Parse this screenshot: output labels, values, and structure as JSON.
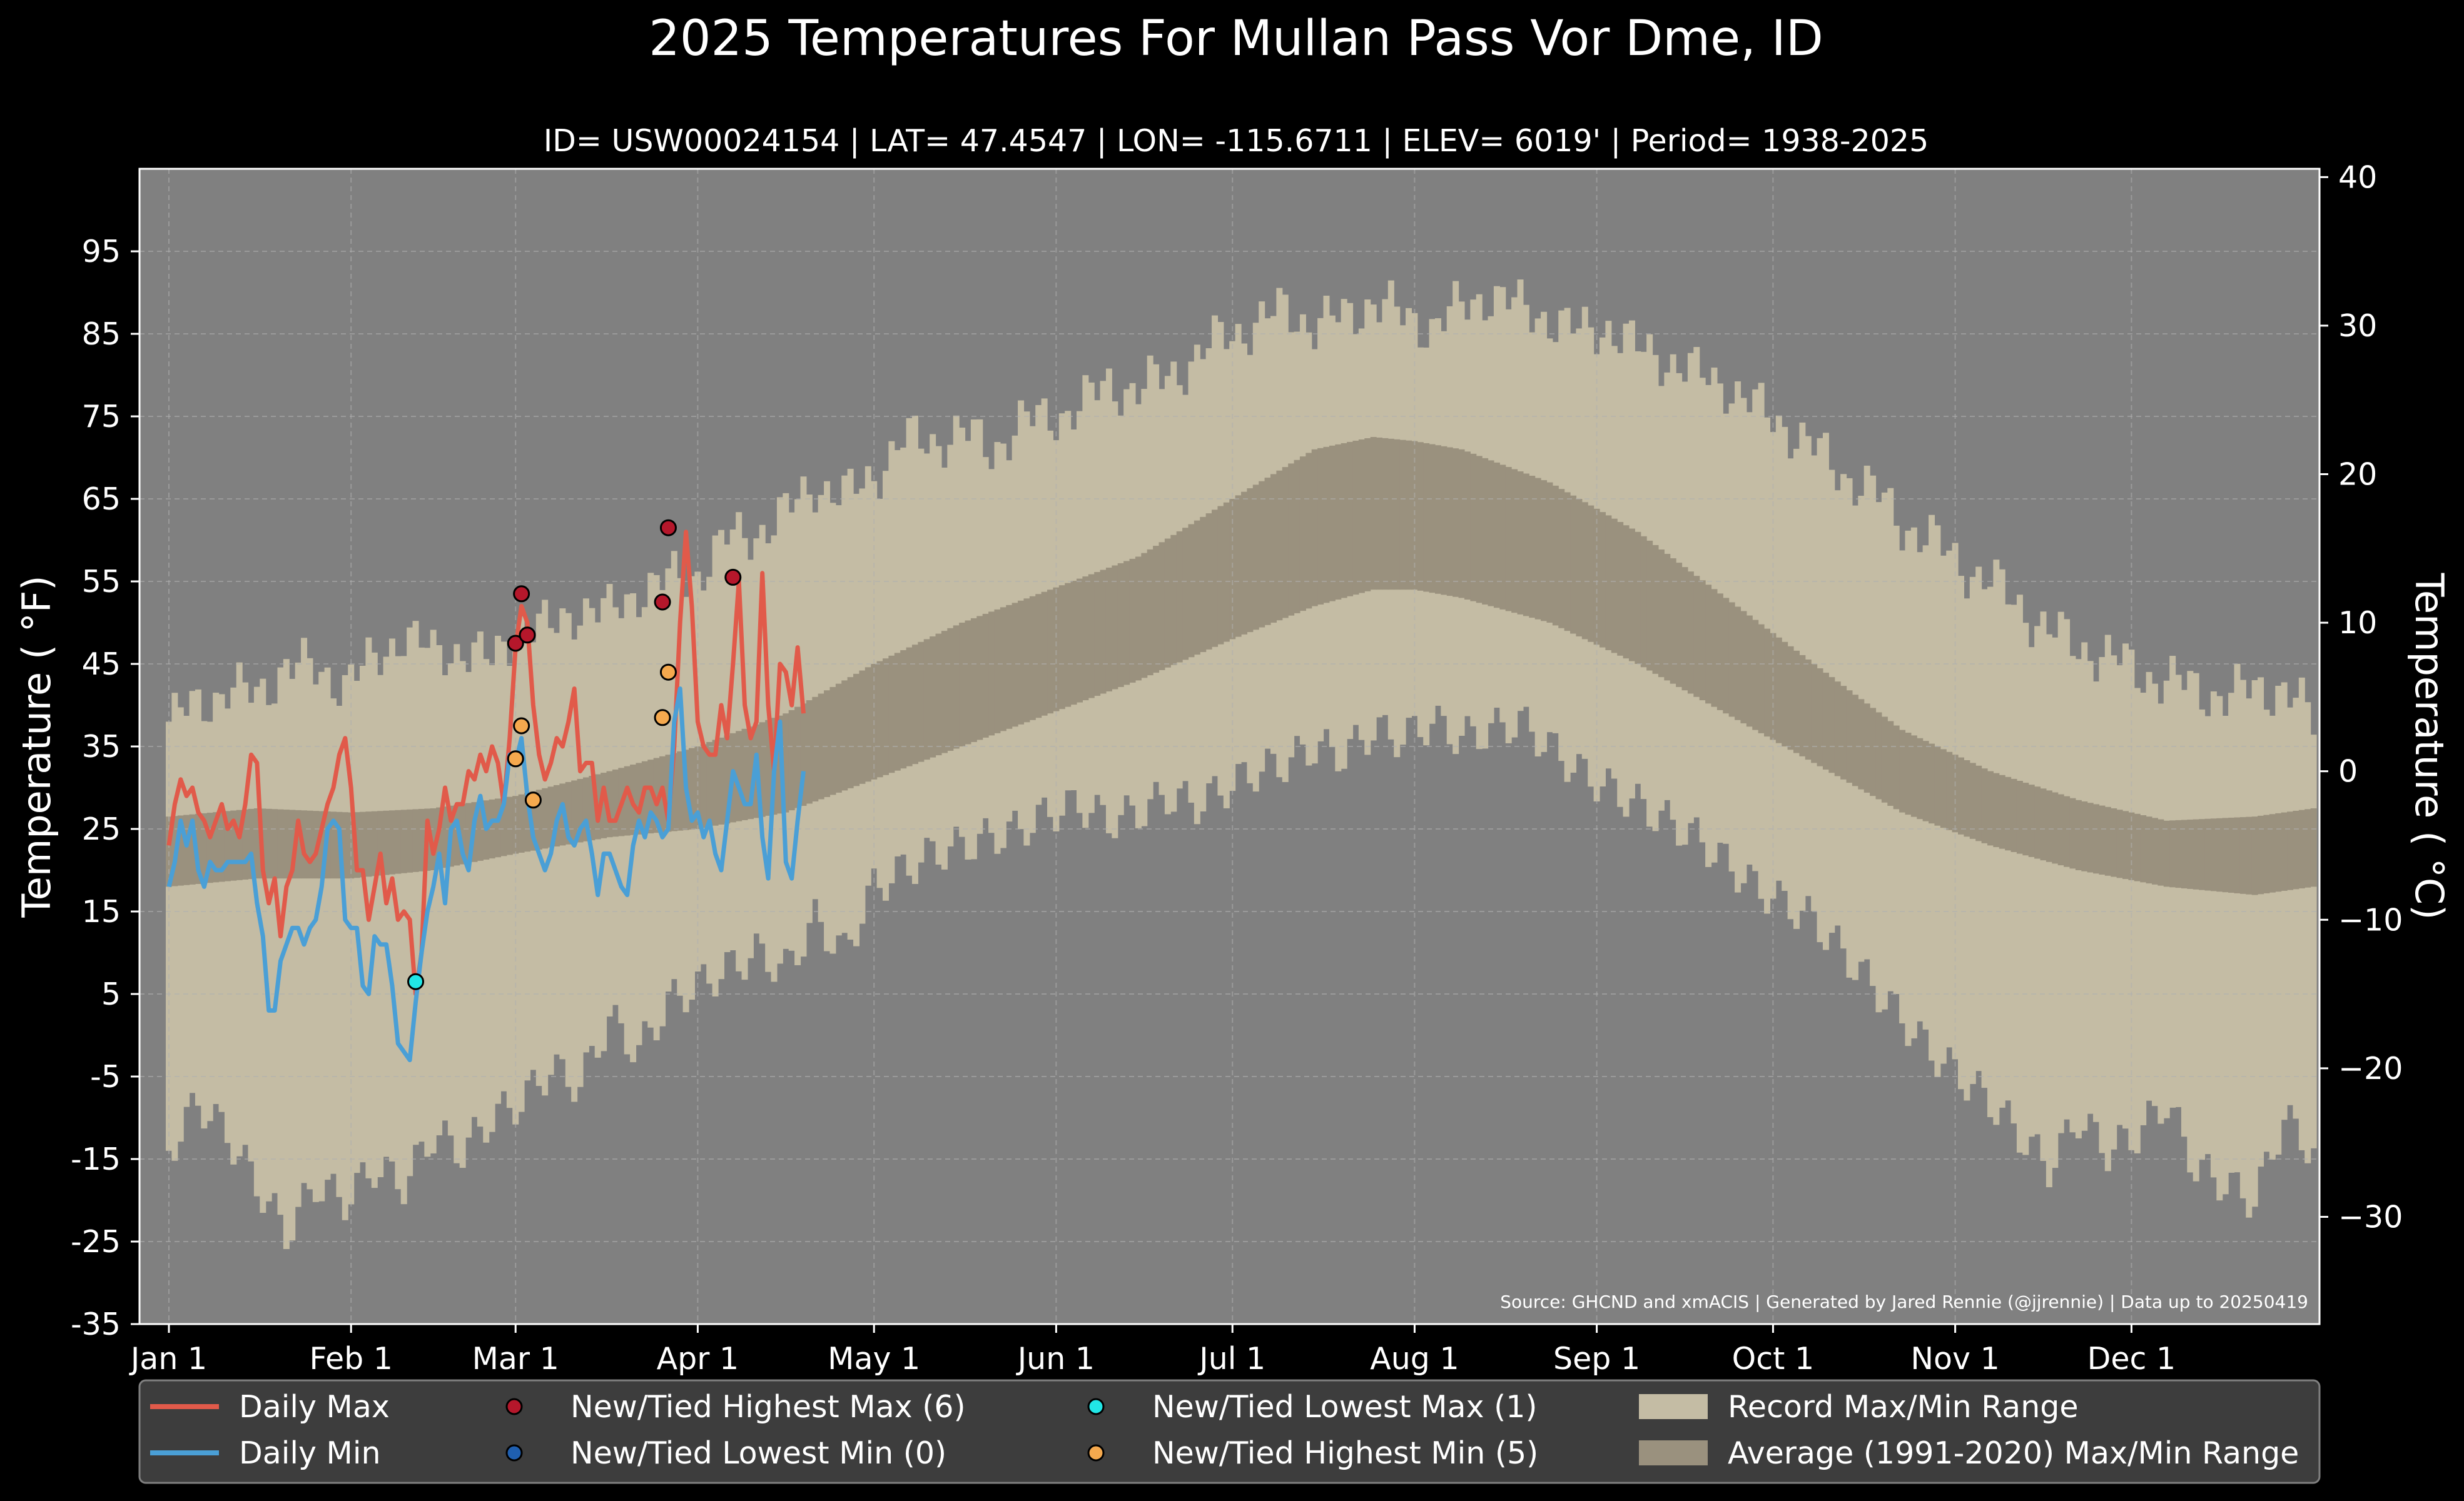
{
  "chart_data": {
    "type": "line",
    "title": "2025 Temperatures For Mullan Pass Vor Dme, ID",
    "subtitle": "ID= USW00024154 | LAT= 47.4547 | LON= -115.6711 | ELEV= 6019' | Period= 1938-2025",
    "ylabel": "Temperature ( $^\\circ$F)",
    "ylabel_display": "Temperature ( °F)",
    "y2label_display": "Temperature ( °C)",
    "ylim": [
      -35,
      105
    ],
    "y2lim": [
      -37.22,
      40.56
    ],
    "xlim": [
      0,
      366
    ],
    "grid": true,
    "legend_placement": "bottom",
    "source": "Source: GHCND and xmACIS | Generated by Jared Rennie (@jjrennie) | Data up to 20250419",
    "y_ticks": [
      "95",
      "85",
      "75",
      "65",
      "55",
      "45",
      "35",
      "25",
      "15",
      "5",
      "-5",
      "-15",
      "-25",
      "-35"
    ],
    "y_tick_values": [
      95,
      85,
      75,
      65,
      55,
      45,
      35,
      25,
      15,
      5,
      -5,
      -15,
      -25,
      -35
    ],
    "y2_ticks": [
      "40",
      "30",
      "20",
      "10",
      "0",
      "−10",
      "−20",
      "−30"
    ],
    "y2_tick_values": [
      40,
      30,
      20,
      10,
      0,
      -10,
      -20,
      -30
    ],
    "x_ticks": [
      "Jan 1",
      "Feb 1",
      "Mar 1",
      "Apr 1",
      "May 1",
      "Jun 1",
      "Jul 1",
      "Aug 1",
      "Sep 1",
      "Oct 1",
      "Nov 1",
      "Dec 1"
    ],
    "x_tick_days": [
      0,
      31,
      59,
      90,
      120,
      151,
      181,
      212,
      243,
      273,
      304,
      334
    ],
    "colors": {
      "background": "#000000",
      "plot_bg": "#808080",
      "record_band": "#c4bca4",
      "normal_band": "#9a917e",
      "daily_max": "#e15a4a",
      "daily_min": "#4a9fd6",
      "new_high_max": "#b5172b",
      "new_low_min": "#1f5fb0",
      "new_low_max": "#21e6e6",
      "new_high_min": "#f5a94e",
      "legend_bg": "#3d3d3d",
      "grid": "#b0b0b0"
    },
    "legend": [
      {
        "label": "Daily Max",
        "kind": "line",
        "color_key": "daily_max"
      },
      {
        "label": "Daily Min",
        "kind": "line",
        "color_key": "daily_min"
      },
      {
        "label": "New/Tied Highest Max (6)",
        "kind": "dot",
        "color_key": "new_high_max"
      },
      {
        "label": "New/Tied Lowest Min (0)",
        "kind": "dot",
        "color_key": "new_low_min"
      },
      {
        "label": "New/Tied Lowest Max (1)",
        "kind": "dot",
        "color_key": "new_low_max"
      },
      {
        "label": "New/Tied Highest Min (5)",
        "kind": "dot",
        "color_key": "new_high_min"
      },
      {
        "label": "Record Max/Min Range",
        "kind": "patch",
        "color_key": "record_band"
      },
      {
        "label": "Average (1991-2020) Max/Min Range",
        "kind": "patch",
        "color_key": "normal_band"
      }
    ],
    "record_high_anchors": {
      "day": [
        0,
        5,
        10,
        15,
        20,
        25,
        30,
        35,
        40,
        45,
        50,
        55,
        60,
        65,
        70,
        75,
        80,
        85,
        90,
        95,
        100,
        105,
        110,
        115,
        120,
        125,
        130,
        135,
        140,
        145,
        150,
        155,
        160,
        165,
        170,
        175,
        180,
        185,
        190,
        195,
        200,
        205,
        210,
        215,
        220,
        225,
        230,
        235,
        240,
        245,
        250,
        255,
        260,
        265,
        270,
        275,
        280,
        285,
        290,
        295,
        300,
        305,
        310,
        315,
        320,
        325,
        330,
        335,
        340,
        345,
        350,
        355,
        360,
        365
      ],
      "value": [
        38,
        40,
        42,
        41,
        45,
        44,
        43,
        45,
        49,
        46,
        47,
        45,
        50,
        49,
        52,
        51,
        54,
        55,
        56,
        60,
        61,
        63,
        67,
        65,
        68,
        72,
        72,
        73,
        71,
        74,
        75,
        76,
        79,
        78,
        80,
        82,
        85,
        86,
        88,
        86,
        87,
        89,
        87,
        86,
        88,
        90,
        88,
        87,
        85,
        86,
        83,
        82,
        80,
        79,
        76,
        74,
        71,
        68,
        66,
        62,
        60,
        57,
        55,
        52,
        49,
        47,
        46,
        44,
        43,
        42,
        41,
        42,
        42,
        38
      ]
    },
    "record_low_anchors": {
      "day": [
        0,
        5,
        10,
        15,
        20,
        25,
        30,
        35,
        40,
        45,
        50,
        55,
        60,
        65,
        70,
        75,
        80,
        85,
        90,
        95,
        100,
        105,
        110,
        115,
        120,
        125,
        130,
        135,
        140,
        145,
        150,
        155,
        160,
        165,
        170,
        175,
        180,
        185,
        190,
        195,
        200,
        205,
        210,
        215,
        220,
        225,
        230,
        235,
        240,
        245,
        250,
        255,
        260,
        265,
        270,
        275,
        280,
        285,
        290,
        295,
        300,
        305,
        310,
        315,
        320,
        325,
        330,
        335,
        340,
        345,
        350,
        355,
        360,
        365
      ],
      "value": [
        -14,
        -8,
        -12,
        -18,
        -24,
        -18,
        -20,
        -16,
        -18,
        -12,
        -14,
        -10,
        -8,
        -4,
        -6,
        2,
        -2,
        4,
        6,
        8,
        10,
        8,
        14,
        10,
        18,
        20,
        22,
        23,
        24,
        25,
        27,
        28,
        26,
        27,
        29,
        28,
        30,
        32,
        33,
        35,
        34,
        37,
        36,
        38,
        36,
        37,
        38,
        35,
        32,
        30,
        28,
        26,
        24,
        21,
        18,
        16,
        14,
        10,
        6,
        2,
        -2,
        -5,
        -8,
        -12,
        -16,
        -10,
        -14,
        -12,
        -8,
        -16,
        -18,
        -20,
        -10,
        -14
      ]
    },
    "normal_high_anchors": {
      "day": [
        0,
        15,
        31,
        45,
        59,
        75,
        90,
        105,
        120,
        135,
        150,
        165,
        181,
        195,
        205,
        212,
        220,
        235,
        250,
        265,
        280,
        295,
        310,
        325,
        340,
        355,
        365
      ],
      "value": [
        26.5,
        27.5,
        27,
        27.5,
        29,
        32,
        35,
        39,
        45,
        50,
        54,
        58,
        65,
        71,
        72.5,
        72,
        71,
        67,
        61,
        53,
        45,
        37,
        32,
        28.5,
        26,
        26.5,
        27.5
      ]
    },
    "normal_low_anchors": {
      "day": [
        0,
        15,
        31,
        45,
        59,
        75,
        90,
        105,
        120,
        135,
        150,
        165,
        181,
        195,
        205,
        212,
        220,
        235,
        250,
        265,
        280,
        295,
        310,
        325,
        340,
        355,
        365
      ],
      "value": [
        18,
        19,
        19,
        20,
        22,
        24,
        25,
        27,
        31,
        35,
        39,
        43,
        48,
        52,
        54,
        54,
        53,
        50,
        45,
        39,
        33,
        27,
        23,
        20,
        18,
        17,
        18
      ]
    },
    "series": [
      {
        "name": "Daily Max",
        "days": [
          0,
          1,
          2,
          3,
          4,
          5,
          6,
          7,
          8,
          9,
          10,
          11,
          12,
          13,
          14,
          15,
          16,
          17,
          18,
          19,
          20,
          21,
          22,
          23,
          24,
          25,
          26,
          27,
          28,
          29,
          30,
          31,
          32,
          33,
          34,
          35,
          36,
          37,
          38,
          39,
          40,
          41,
          42,
          43,
          44,
          45,
          46,
          47,
          48,
          49,
          50,
          51,
          52,
          53,
          54,
          55,
          56,
          57,
          58,
          59,
          60,
          61,
          62,
          63,
          64,
          65,
          66,
          67,
          68,
          69,
          70,
          71,
          72,
          73,
          74,
          75,
          76,
          77,
          78,
          79,
          80,
          81,
          82,
          83,
          84,
          85,
          86,
          87,
          88,
          89,
          90,
          91,
          92,
          93,
          94,
          95,
          96,
          97,
          98,
          99,
          100,
          101,
          102,
          103,
          104,
          105,
          106,
          107,
          108
        ],
        "values": [
          23,
          28,
          31,
          29,
          30,
          27,
          26,
          24,
          26,
          28,
          25,
          26,
          24,
          28,
          34,
          33,
          20,
          16,
          19,
          12,
          18,
          20,
          26,
          22,
          21,
          22,
          25,
          28,
          30,
          34,
          36,
          30,
          20,
          20,
          14,
          18,
          22,
          16,
          19,
          14,
          15,
          14,
          5,
          10,
          26,
          22,
          25,
          30,
          26,
          28,
          28,
          32,
          31,
          34,
          32,
          35,
          33,
          28,
          36,
          47,
          52,
          50,
          40,
          34,
          31,
          33,
          36,
          35,
          38,
          42,
          32,
          33,
          33,
          26,
          30,
          26,
          26,
          28,
          30,
          28,
          27,
          30,
          30,
          28,
          30,
          26,
          35,
          50,
          61,
          52,
          38,
          35,
          34,
          34,
          40,
          36,
          45,
          55,
          40,
          36,
          38,
          56,
          40,
          32,
          45,
          44,
          40,
          47,
          39
        ]
      },
      {
        "name": "Daily Min",
        "days": [
          0,
          1,
          2,
          3,
          4,
          5,
          6,
          7,
          8,
          9,
          10,
          11,
          12,
          13,
          14,
          15,
          16,
          17,
          18,
          19,
          20,
          21,
          22,
          23,
          24,
          25,
          26,
          27,
          28,
          29,
          30,
          31,
          32,
          33,
          34,
          35,
          36,
          37,
          38,
          39,
          40,
          41,
          42,
          43,
          44,
          45,
          46,
          47,
          48,
          49,
          50,
          51,
          52,
          53,
          54,
          55,
          56,
          57,
          58,
          59,
          60,
          61,
          62,
          63,
          64,
          65,
          66,
          67,
          68,
          69,
          70,
          71,
          72,
          73,
          74,
          75,
          76,
          77,
          78,
          79,
          80,
          81,
          82,
          83,
          84,
          85,
          86,
          87,
          88,
          89,
          90,
          91,
          92,
          93,
          94,
          95,
          96,
          97,
          98,
          99,
          100,
          101,
          102,
          103,
          104,
          105,
          106,
          107,
          108
        ],
        "values": [
          18,
          21,
          26,
          23,
          26,
          20,
          18,
          21,
          20,
          20,
          21,
          21,
          21,
          21,
          22,
          16,
          12,
          3,
          3,
          9,
          11,
          13,
          13,
          11,
          13,
          14,
          18,
          25,
          26,
          25,
          14,
          13,
          13,
          6,
          5,
          12,
          11,
          11,
          6,
          -1,
          -2,
          -3,
          4,
          10,
          15,
          18,
          22,
          16,
          25,
          26,
          22,
          20,
          26,
          29,
          25,
          26,
          26,
          28,
          34,
          33,
          36,
          29,
          24,
          22,
          20,
          22,
          26,
          28,
          24,
          23,
          25,
          26,
          22,
          17,
          22,
          22,
          20,
          18,
          17,
          23,
          26,
          24,
          27,
          26,
          24,
          25,
          38,
          42,
          30,
          26,
          27,
          24,
          26,
          22,
          20,
          26,
          32,
          30,
          28,
          28,
          34,
          24,
          19,
          32,
          38,
          21,
          19,
          26,
          32
        ]
      }
    ],
    "record_points": [
      {
        "type": "New/Tied Highest Max",
        "days": [
          59,
          60,
          61,
          84,
          85,
          96
        ],
        "values": [
          47.5,
          53.5,
          48.5,
          52.5,
          61.5,
          55.5
        ]
      },
      {
        "type": "New/Tied Lowest Max",
        "days": [
          42
        ],
        "values": [
          6.5
        ]
      },
      {
        "type": "New/Tied Highest Min",
        "days": [
          59,
          60,
          62,
          84,
          85
        ],
        "values": [
          33.5,
          37.5,
          28.5,
          38.5,
          44.0
        ]
      }
    ]
  }
}
